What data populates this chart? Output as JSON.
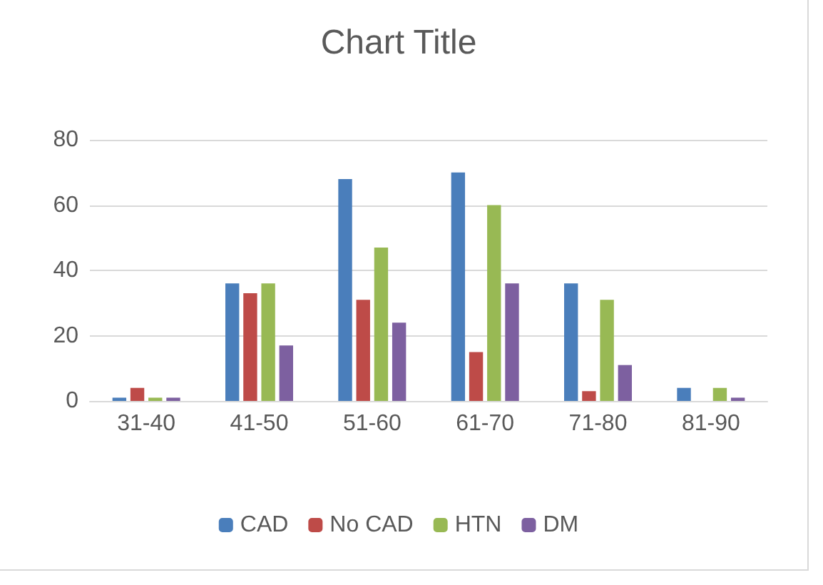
{
  "chart_data": {
    "type": "bar",
    "title": "Chart Title",
    "categories": [
      "31-40",
      "41-50",
      "51-60",
      "61-70",
      "71-80",
      "81-90"
    ],
    "series": [
      {
        "name": "CAD",
        "color": "#4a7ebb",
        "values": [
          1,
          36,
          68,
          70,
          36,
          4
        ]
      },
      {
        "name": "No CAD",
        "color": "#be4b48",
        "values": [
          4,
          33,
          31,
          15,
          3,
          0
        ]
      },
      {
        "name": "HTN",
        "color": "#98b954",
        "values": [
          1,
          36,
          47,
          60,
          31,
          4
        ]
      },
      {
        "name": "DM",
        "color": "#7d60a0",
        "values": [
          1,
          17,
          24,
          36,
          11,
          1
        ]
      }
    ],
    "ylim": [
      0,
      80
    ],
    "yticks": [
      0,
      20,
      40,
      60,
      80
    ],
    "grid": "y",
    "legend": "bottom"
  }
}
